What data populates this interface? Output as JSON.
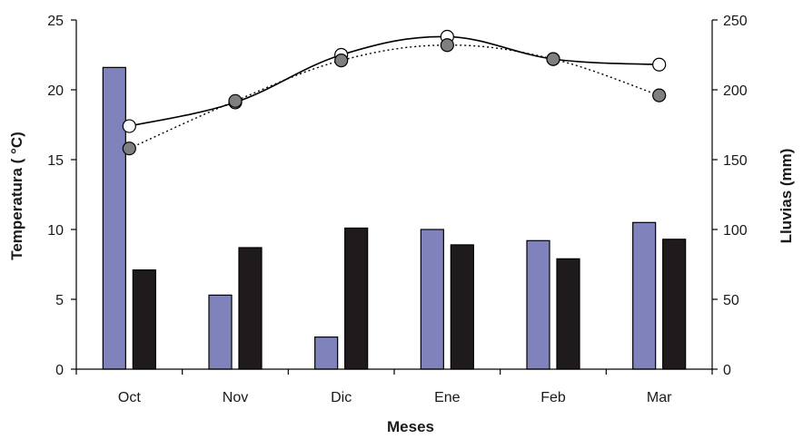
{
  "chart_data": {
    "type": "bar",
    "categories": [
      "Oct",
      "Nov",
      "Dic",
      "Ene",
      "Feb",
      "Mar"
    ],
    "xlabel": "Meses",
    "ylabel_left": "Temperatura ( °C)",
    "ylabel_right": "Lluvias (mm)",
    "ylim_left": [
      0,
      25
    ],
    "ylim_right": [
      0,
      250
    ],
    "yticks_left": [
      "0",
      "5",
      "10",
      "15",
      "20",
      "25"
    ],
    "yticks_right": [
      "0",
      "50",
      "100",
      "150",
      "200",
      "250"
    ],
    "grid": false,
    "legend": "none",
    "bar_series": [
      {
        "axis": "right",
        "color": "#7f82bb",
        "values": [
          216,
          53,
          23,
          100,
          92,
          105
        ]
      },
      {
        "axis": "right",
        "color": "#1f1b1c",
        "values": [
          71,
          87,
          101,
          89,
          79,
          93
        ]
      }
    ],
    "line_series": [
      {
        "axis": "left",
        "style": "solid",
        "marker_fill": "#ffffff",
        "values": [
          17.4,
          19.1,
          22.5,
          23.8,
          22.2,
          21.8
        ]
      },
      {
        "axis": "left",
        "style": "dotted",
        "marker_fill": "#7f7f7f",
        "values": [
          15.8,
          19.2,
          22.1,
          23.2,
          22.2,
          19.6
        ]
      }
    ]
  }
}
